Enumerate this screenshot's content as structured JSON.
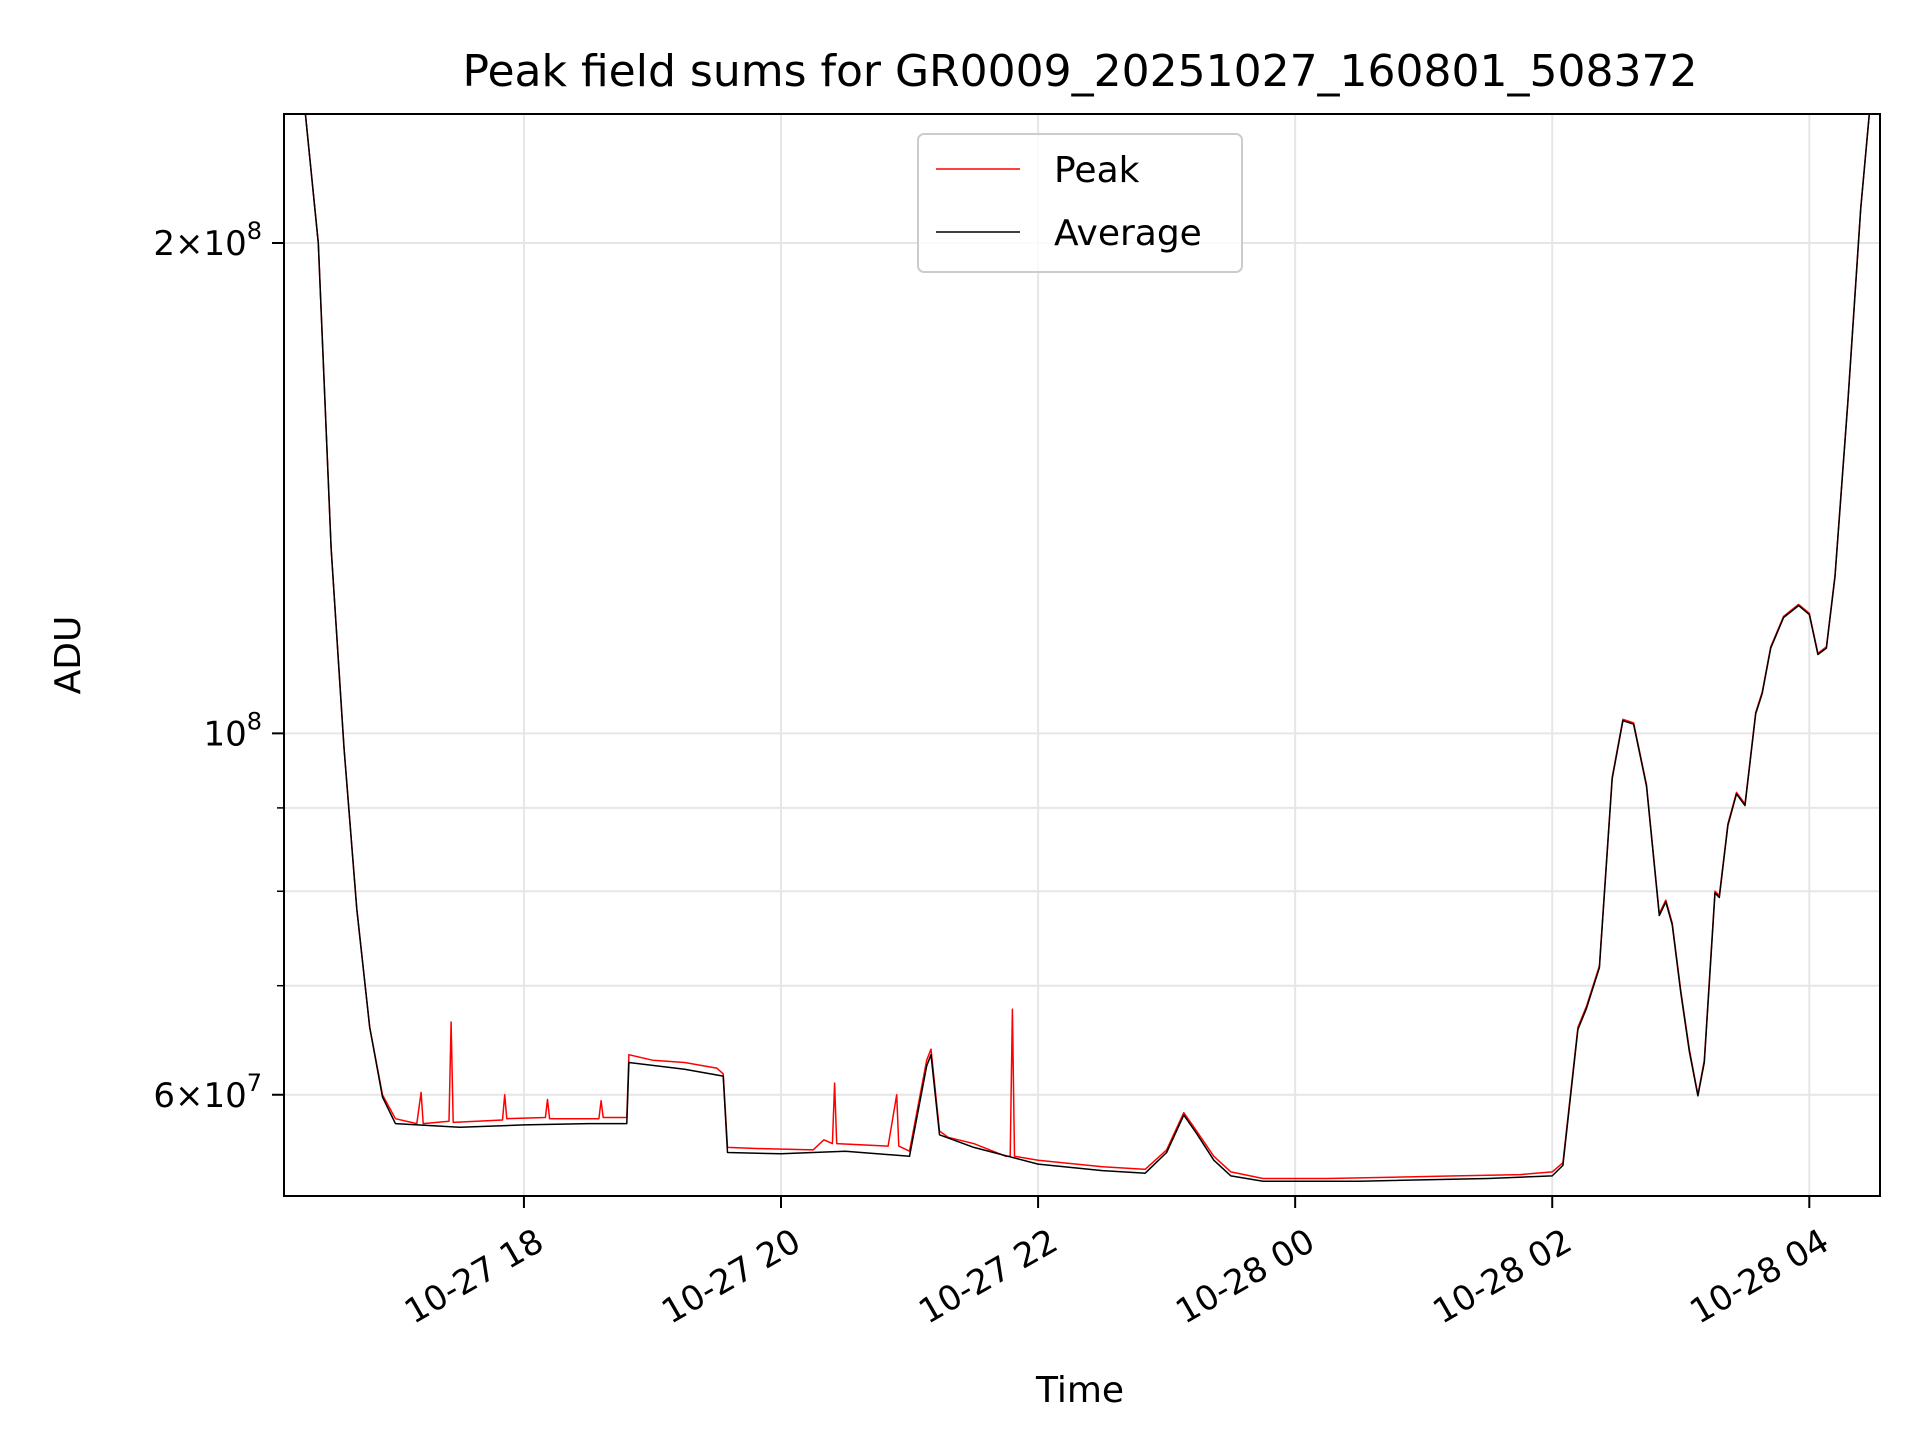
{
  "chart_data": {
    "type": "line",
    "title": "Peak field sums for GR0009_20251027_160801_508372",
    "xlabel": "Time",
    "ylabel": "ADU",
    "yscale": "log",
    "ylim": [
      52000000,
      240000000
    ],
    "xlim": [
      "2025-10-27 16:08",
      "2025-10-28 04:33"
    ],
    "grid": true,
    "legend": "upper center",
    "x_ticks": [
      {
        "value": "2025-10-27 18:00",
        "label": "10-27 18"
      },
      {
        "value": "2025-10-27 20:00",
        "label": "10-27 20"
      },
      {
        "value": "2025-10-27 22:00",
        "label": "10-27 22"
      },
      {
        "value": "2025-10-28 00:00",
        "label": "10-28 00"
      },
      {
        "value": "2025-10-28 02:00",
        "label": "10-28 02"
      },
      {
        "value": "2025-10-28 04:00",
        "label": "10-28 04"
      }
    ],
    "y_major_ticks": [
      {
        "value": 60000000,
        "mantissa": "6",
        "exponent": "7"
      },
      {
        "value": 100000000,
        "mantissa": "",
        "exponent": "8"
      },
      {
        "value": 200000000,
        "mantissa": "2",
        "exponent": "8"
      }
    ],
    "y_minor_gridlines": [
      70000000,
      80000000,
      90000000
    ],
    "series": [
      {
        "name": "Peak",
        "color": "#ff0000",
        "points": [
          [
            "2025-10-27 16:08",
            240000000
          ],
          [
            "2025-10-27 16:18",
            240000000
          ],
          [
            "2025-10-27 16:24",
            200000000
          ],
          [
            "2025-10-27 16:30",
            130000000
          ],
          [
            "2025-10-27 16:36",
            98000000
          ],
          [
            "2025-10-27 16:42",
            78000000
          ],
          [
            "2025-10-27 16:48",
            66000000
          ],
          [
            "2025-10-27 16:54",
            60000000
          ],
          [
            "2025-10-27 17:00",
            58000000
          ],
          [
            "2025-10-27 17:10",
            57600000
          ],
          [
            "2025-10-27 17:12",
            60200000
          ],
          [
            "2025-10-27 17:13",
            57600000
          ],
          [
            "2025-10-27 17:25",
            57800000
          ],
          [
            "2025-10-27 17:26",
            66500000
          ],
          [
            "2025-10-27 17:27",
            57700000
          ],
          [
            "2025-10-27 17:50",
            57900000
          ],
          [
            "2025-10-27 17:51",
            60000000
          ],
          [
            "2025-10-27 17:52",
            58000000
          ],
          [
            "2025-10-27 18:10",
            58100000
          ],
          [
            "2025-10-27 18:11",
            59600000
          ],
          [
            "2025-10-27 18:12",
            58000000
          ],
          [
            "2025-10-27 18:35",
            58000000
          ],
          [
            "2025-10-27 18:36",
            59500000
          ],
          [
            "2025-10-27 18:37",
            58100000
          ],
          [
            "2025-10-27 18:48",
            58100000
          ],
          [
            "2025-10-27 18:49",
            63500000
          ],
          [
            "2025-10-27 19:00",
            63000000
          ],
          [
            "2025-10-27 19:15",
            62800000
          ],
          [
            "2025-10-27 19:30",
            62300000
          ],
          [
            "2025-10-27 19:33",
            61800000
          ],
          [
            "2025-10-27 19:35",
            55700000
          ],
          [
            "2025-10-27 19:50",
            55600000
          ],
          [
            "2025-10-27 20:15",
            55500000
          ],
          [
            "2025-10-27 20:20",
            56300000
          ],
          [
            "2025-10-27 20:24",
            56000000
          ],
          [
            "2025-10-27 20:25",
            61000000
          ],
          [
            "2025-10-27 20:26",
            56000000
          ],
          [
            "2025-10-27 20:50",
            55800000
          ],
          [
            "2025-10-27 20:54",
            60000000
          ],
          [
            "2025-10-27 20:55",
            55800000
          ],
          [
            "2025-10-27 21:00",
            55400000
          ],
          [
            "2025-10-27 21:08",
            63000000
          ],
          [
            "2025-10-27 21:10",
            64000000
          ],
          [
            "2025-10-27 21:14",
            57000000
          ],
          [
            "2025-10-27 21:18",
            56500000
          ],
          [
            "2025-10-27 21:30",
            56000000
          ],
          [
            "2025-10-27 21:45",
            55000000
          ],
          [
            "2025-10-27 21:47",
            55000000
          ],
          [
            "2025-10-27 21:48",
            67700000
          ],
          [
            "2025-10-27 21:49",
            55000000
          ],
          [
            "2025-10-27 22:00",
            54700000
          ],
          [
            "2025-10-27 22:30",
            54200000
          ],
          [
            "2025-10-27 22:50",
            54000000
          ],
          [
            "2025-10-27 23:00",
            55500000
          ],
          [
            "2025-10-27 23:08",
            58500000
          ],
          [
            "2025-10-27 23:14",
            57000000
          ],
          [
            "2025-10-27 23:22",
            55000000
          ],
          [
            "2025-10-27 23:30",
            53800000
          ],
          [
            "2025-10-27 23:45",
            53300000
          ],
          [
            "2025-10-28 00:15",
            53300000
          ],
          [
            "2025-10-28 00:45",
            53400000
          ],
          [
            "2025-10-28 01:15",
            53500000
          ],
          [
            "2025-10-28 01:45",
            53600000
          ],
          [
            "2025-10-28 02:00",
            53800000
          ],
          [
            "2025-10-28 02:05",
            54500000
          ],
          [
            "2025-10-28 02:12",
            66000000
          ],
          [
            "2025-10-28 02:16",
            68000000
          ],
          [
            "2025-10-28 02:22",
            72000000
          ],
          [
            "2025-10-28 02:28",
            94000000
          ],
          [
            "2025-10-28 02:33",
            102000000
          ],
          [
            "2025-10-28 02:38",
            101500000
          ],
          [
            "2025-10-28 02:44",
            93000000
          ],
          [
            "2025-10-28 02:50",
            77500000
          ],
          [
            "2025-10-28 02:53",
            79000000
          ],
          [
            "2025-10-28 02:56",
            76500000
          ],
          [
            "2025-10-28 03:00",
            69500000
          ],
          [
            "2025-10-28 03:04",
            64000000
          ],
          [
            "2025-10-28 03:08",
            60000000
          ],
          [
            "2025-10-28 03:11",
            63000000
          ],
          [
            "2025-10-28 03:16",
            80000000
          ],
          [
            "2025-10-28 03:18",
            79500000
          ],
          [
            "2025-10-28 03:22",
            88000000
          ],
          [
            "2025-10-28 03:26",
            92000000
          ],
          [
            "2025-10-28 03:30",
            90500000
          ],
          [
            "2025-10-28 03:35",
            103000000
          ],
          [
            "2025-10-28 03:38",
            106000000
          ],
          [
            "2025-10-28 03:42",
            113000000
          ],
          [
            "2025-10-28 03:48",
            118000000
          ],
          [
            "2025-10-28 03:55",
            120000000
          ],
          [
            "2025-10-28 04:00",
            118500000
          ],
          [
            "2025-10-28 04:04",
            112000000
          ],
          [
            "2025-10-28 04:08",
            113000000
          ],
          [
            "2025-10-28 04:12",
            125000000
          ],
          [
            "2025-10-28 04:18",
            160000000
          ],
          [
            "2025-10-28 04:24",
            210000000
          ],
          [
            "2025-10-28 04:28",
            240000000
          ],
          [
            "2025-10-28 04:33",
            240000000
          ]
        ]
      },
      {
        "name": "Average",
        "color": "#000000",
        "points": [
          [
            "2025-10-27 16:08",
            240000000
          ],
          [
            "2025-10-27 16:18",
            240000000
          ],
          [
            "2025-10-27 16:24",
            200000000
          ],
          [
            "2025-10-27 16:30",
            130000000
          ],
          [
            "2025-10-27 16:36",
            98000000
          ],
          [
            "2025-10-27 16:42",
            78000000
          ],
          [
            "2025-10-27 16:48",
            66000000
          ],
          [
            "2025-10-27 16:54",
            59800000
          ],
          [
            "2025-10-27 17:00",
            57600000
          ],
          [
            "2025-10-27 17:30",
            57300000
          ],
          [
            "2025-10-27 18:00",
            57500000
          ],
          [
            "2025-10-27 18:30",
            57600000
          ],
          [
            "2025-10-27 18:48",
            57600000
          ],
          [
            "2025-10-27 18:49",
            62800000
          ],
          [
            "2025-10-27 19:15",
            62200000
          ],
          [
            "2025-10-27 19:33",
            61600000
          ],
          [
            "2025-10-27 19:35",
            55300000
          ],
          [
            "2025-10-27 20:00",
            55200000
          ],
          [
            "2025-10-27 20:30",
            55400000
          ],
          [
            "2025-10-27 21:00",
            55000000
          ],
          [
            "2025-10-27 21:08",
            62500000
          ],
          [
            "2025-10-27 21:10",
            63500000
          ],
          [
            "2025-10-27 21:14",
            56700000
          ],
          [
            "2025-10-27 21:30",
            55700000
          ],
          [
            "2025-10-27 22:00",
            54400000
          ],
          [
            "2025-10-27 22:30",
            53900000
          ],
          [
            "2025-10-27 22:50",
            53700000
          ],
          [
            "2025-10-27 23:00",
            55300000
          ],
          [
            "2025-10-27 23:08",
            58300000
          ],
          [
            "2025-10-27 23:14",
            56800000
          ],
          [
            "2025-10-27 23:22",
            54700000
          ],
          [
            "2025-10-27 23:30",
            53500000
          ],
          [
            "2025-10-27 23:45",
            53100000
          ],
          [
            "2025-10-28 00:30",
            53100000
          ],
          [
            "2025-10-28 01:30",
            53300000
          ],
          [
            "2025-10-28 02:00",
            53500000
          ],
          [
            "2025-10-28 02:05",
            54300000
          ],
          [
            "2025-10-28 02:12",
            65800000
          ],
          [
            "2025-10-28 02:16",
            67800000
          ],
          [
            "2025-10-28 02:22",
            71800000
          ],
          [
            "2025-10-28 02:28",
            93800000
          ],
          [
            "2025-10-28 02:33",
            101800000
          ],
          [
            "2025-10-28 02:38",
            101300000
          ],
          [
            "2025-10-28 02:44",
            92800000
          ],
          [
            "2025-10-28 02:50",
            77300000
          ],
          [
            "2025-10-28 02:53",
            78800000
          ],
          [
            "2025-10-28 02:56",
            76300000
          ],
          [
            "2025-10-28 03:00",
            69300000
          ],
          [
            "2025-10-28 03:04",
            63800000
          ],
          [
            "2025-10-28 03:08",
            59900000
          ],
          [
            "2025-10-28 03:11",
            62800000
          ],
          [
            "2025-10-28 03:16",
            79800000
          ],
          [
            "2025-10-28 03:18",
            79300000
          ],
          [
            "2025-10-28 03:22",
            87800000
          ],
          [
            "2025-10-28 03:26",
            91800000
          ],
          [
            "2025-10-28 03:30",
            90300000
          ],
          [
            "2025-10-28 03:35",
            102800000
          ],
          [
            "2025-10-28 03:38",
            105800000
          ],
          [
            "2025-10-28 03:42",
            112800000
          ],
          [
            "2025-10-28 03:48",
            117800000
          ],
          [
            "2025-10-28 03:55",
            119800000
          ],
          [
            "2025-10-28 04:00",
            118300000
          ],
          [
            "2025-10-28 04:04",
            111800000
          ],
          [
            "2025-10-28 04:08",
            112800000
          ],
          [
            "2025-10-28 04:12",
            124800000
          ],
          [
            "2025-10-28 04:18",
            159800000
          ],
          [
            "2025-10-28 04:24",
            209800000
          ],
          [
            "2025-10-28 04:28",
            240000000
          ],
          [
            "2025-10-28 04:33",
            240000000
          ]
        ]
      }
    ]
  }
}
